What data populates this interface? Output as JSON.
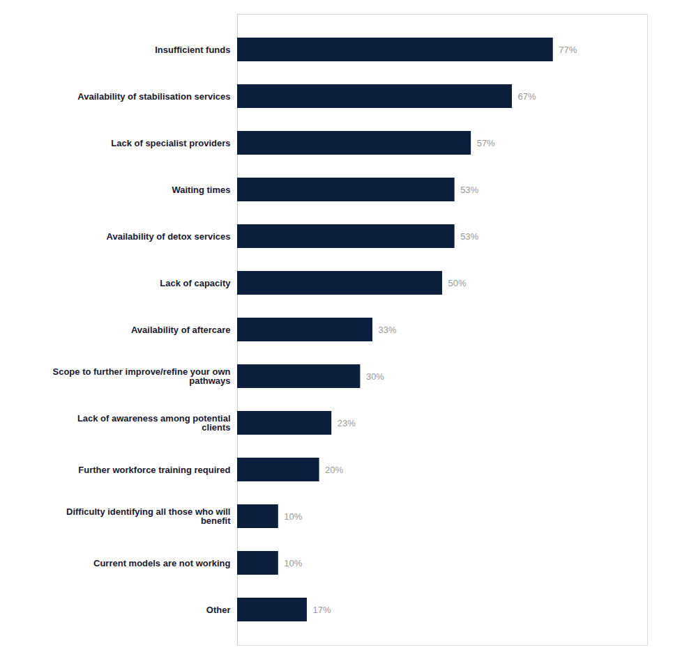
{
  "chart_data": {
    "type": "bar",
    "orientation": "horizontal",
    "categories": [
      "Other",
      "Current models are not working",
      "Difficulty identifying all those who will\nbenefit",
      "Further workforce training required",
      "Lack of awareness among potential\nclients",
      "Scope to further improve/refine your own\npathways",
      "Availability of aftercare",
      "Lack of capacity",
      "Availability of detox services",
      "Waiting times",
      "Lack of specialist providers",
      "Availability of stabilisation services",
      "Insufficient funds"
    ],
    "values": [
      17,
      10,
      10,
      20,
      23,
      30,
      33,
      50,
      53,
      53,
      57,
      67,
      77
    ],
    "value_labels": [
      "17%",
      "10%",
      "10%",
      "20%",
      "23%",
      "30%",
      "33%",
      "50%",
      "53%",
      "53%",
      "57%",
      "67%",
      "77%"
    ],
    "color": "#0d1f3c",
    "xlim": [
      0,
      100
    ],
    "data_labels": true,
    "tick_labels": "y",
    "grid": false
  }
}
